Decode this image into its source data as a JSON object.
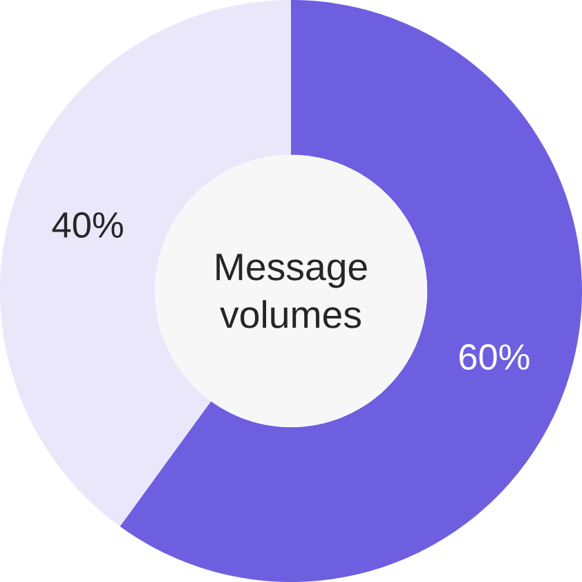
{
  "chart_data": {
    "type": "donut",
    "title": "Message volumes",
    "categories": [
      null,
      null
    ],
    "values": [
      60,
      40
    ],
    "colors": [
      "#6e5fe0",
      "#ebe7fb"
    ],
    "value_labels": [
      "60%",
      "40%"
    ]
  }
}
